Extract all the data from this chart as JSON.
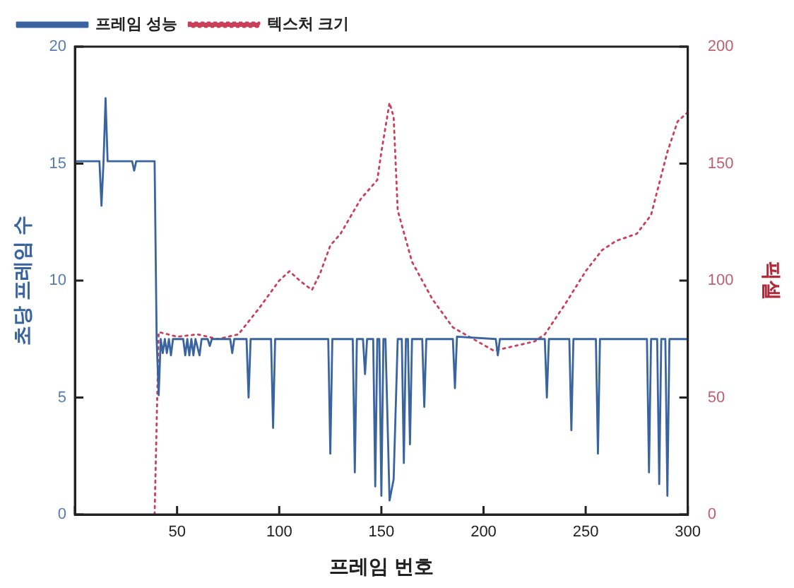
{
  "chart_data": {
    "type": "line",
    "xlabel": "프레임 번호",
    "ylabel": "초당 프레임 수",
    "y2label": "픽셀",
    "xlim": [
      0,
      300
    ],
    "xticks": [
      {
        "value": 0,
        "label": null
      },
      50,
      100,
      150,
      200,
      250,
      300
    ],
    "ylim": [
      0,
      20
    ],
    "yticks": [
      0,
      5,
      10,
      15,
      20
    ],
    "y2lim": [
      0,
      200
    ],
    "y2ticks": [
      0,
      50,
      100,
      150,
      200
    ],
    "legend": "top left",
    "grid": false,
    "marker": "none",
    "series": [
      {
        "name": "프레임 성능",
        "color": "#3a64a0",
        "line_style": "solid",
        "x": [
          0,
          12,
          13,
          14,
          15,
          16,
          28,
          29,
          30,
          39,
          40,
          41,
          42,
          43,
          44,
          45,
          46,
          47,
          48,
          53,
          54,
          55,
          56,
          57,
          58,
          59,
          61,
          62,
          65,
          66,
          67,
          76,
          77,
          78,
          84,
          85,
          86,
          96,
          97,
          98,
          124,
          125,
          126,
          136,
          137,
          138,
          141,
          142,
          143,
          146,
          147,
          148,
          149,
          150,
          151,
          152,
          154,
          156,
          158,
          160,
          161,
          162,
          163,
          164,
          165,
          170,
          171,
          172,
          185,
          186,
          187,
          206,
          207,
          208,
          230,
          231,
          232,
          242,
          243,
          244,
          255,
          256,
          257,
          280,
          281,
          282,
          285,
          286,
          287,
          289,
          290,
          291,
          300
        ],
        "values": [
          15.1,
          15.1,
          13.2,
          15.1,
          17.8,
          15.1,
          15.1,
          14.7,
          15.1,
          15.1,
          7.5,
          5.1,
          7.5,
          6.9,
          7.5,
          6.9,
          7.5,
          6.8,
          7.5,
          7.5,
          6.8,
          7.5,
          6.8,
          7.5,
          6.8,
          7.5,
          6.8,
          7.5,
          7.5,
          7.2,
          7.5,
          7.5,
          6.9,
          7.5,
          7.5,
          5.0,
          7.5,
          7.5,
          3.7,
          7.5,
          7.5,
          2.6,
          7.5,
          7.5,
          1.8,
          7.5,
          7.5,
          6.0,
          7.5,
          7.5,
          1.2,
          7.5,
          7.5,
          0.8,
          7.5,
          7.5,
          0.6,
          1.5,
          7.5,
          7.5,
          2.2,
          7.5,
          7.5,
          3.0,
          7.5,
          7.5,
          4.6,
          7.5,
          7.5,
          5.4,
          7.6,
          7.5,
          6.8,
          7.5,
          7.5,
          5.0,
          7.5,
          7.5,
          3.6,
          7.5,
          7.5,
          2.6,
          7.5,
          7.5,
          1.8,
          7.5,
          7.5,
          1.3,
          7.5,
          7.5,
          0.8,
          7.5,
          7.5
        ]
      },
      {
        "name": "텍스처 크기",
        "color": "#c8405a",
        "line_style": "dotted",
        "axis": "y2",
        "x": [
          39,
          41,
          50,
          60,
          70,
          80,
          90,
          100,
          105,
          110,
          116,
          120,
          125,
          130,
          140,
          148,
          150,
          154,
          156,
          158,
          165,
          175,
          185,
          195,
          205,
          215,
          225,
          230,
          240,
          250,
          258,
          265,
          275,
          282,
          290,
          295,
          300
        ],
        "values": [
          0,
          78,
          76,
          77,
          75,
          77,
          88,
          100,
          104,
          100,
          96,
          103,
          115,
          120,
          135,
          143,
          155,
          176,
          170,
          130,
          108,
          92,
          80,
          75,
          70,
          72,
          74,
          77,
          90,
          104,
          113,
          117,
          120,
          128,
          155,
          168,
          172
        ]
      }
    ]
  }
}
